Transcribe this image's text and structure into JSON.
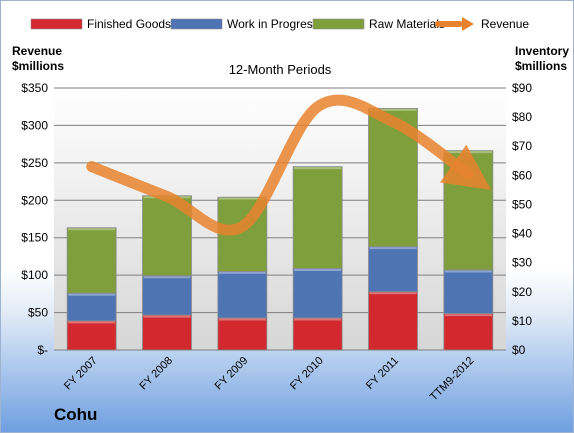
{
  "company": "Cohu",
  "chart_data": {
    "type": "bar",
    "stacked": true,
    "title": "12-Month Periods",
    "left_axis_label": [
      "Revenue",
      "$millions"
    ],
    "right_axis_label": [
      "Inventory",
      "$millions"
    ],
    "categories": [
      "FY 2007",
      "FY 2008",
      "FY 2009",
      "FY 2010",
      "FY 2011",
      "TTM9-2012"
    ],
    "left_ylim": [
      0,
      350
    ],
    "left_ticks": [
      0,
      50,
      100,
      150,
      200,
      250,
      300,
      350
    ],
    "left_tick_labels": [
      "$-",
      "$50",
      "$100",
      "$150",
      "$200",
      "$250",
      "$300",
      "$350"
    ],
    "right_ylim": [
      0,
      90
    ],
    "right_ticks": [
      0,
      10,
      20,
      30,
      40,
      50,
      60,
      70,
      80,
      90
    ],
    "right_tick_labels": [
      "$0",
      "$10",
      "$20",
      "$30",
      "$40",
      "$50",
      "$60",
      "$70",
      "$80",
      "$90"
    ],
    "grid": true,
    "legend_position": "top",
    "series": [
      {
        "name": "Finished Goods",
        "axis": "right",
        "color": "#d2282e",
        "values": [
          10,
          12,
          11,
          11,
          20,
          12.5
        ]
      },
      {
        "name": "Work in Progress",
        "axis": "right",
        "color": "#4f74b4",
        "values": [
          9.5,
          13.5,
          16,
          17,
          15.5,
          15
        ]
      },
      {
        "name": "Raw Materials",
        "axis": "right",
        "color": "#7f9f3c",
        "values": [
          22.5,
          27.5,
          25.5,
          35,
          47.5,
          41
        ]
      },
      {
        "name": "Revenue",
        "axis": "left",
        "type": "line",
        "color": "#e8822e",
        "values": [
          245,
          205,
          165,
          325,
          305,
          235
        ]
      }
    ]
  }
}
